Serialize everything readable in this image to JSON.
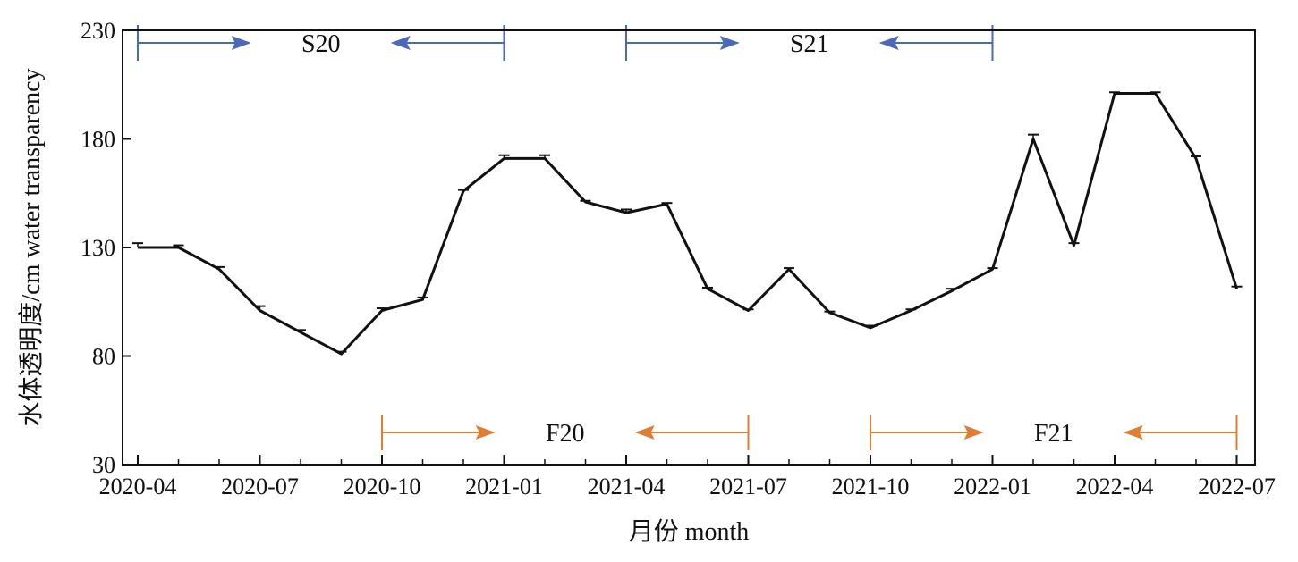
{
  "chart_data": {
    "type": "line",
    "title": "",
    "xlabel": "月份 month",
    "ylabel": "水体透明度/cm water transparency",
    "ylim": [
      30,
      230
    ],
    "yticks": [
      "30",
      "80",
      "130",
      "180",
      "230"
    ],
    "xticks": [
      "2020-04",
      "2020-07",
      "2020-10",
      "2021-01",
      "2021-04",
      "2021-07",
      "2021-10",
      "2022-01",
      "2022-04",
      "2022-07"
    ],
    "grid": false,
    "series": [
      {
        "x": [
          "2020-04",
          "2020-05",
          "2020-06",
          "2020-07",
          "2020-08",
          "2020-09",
          "2020-10",
          "2020-11",
          "2020-12",
          "2021-01",
          "2021-02",
          "2021-03",
          "2021-04",
          "2021-05",
          "2021-06",
          "2021-07",
          "2021-08",
          "2021-09",
          "2021-10",
          "2021-11",
          "2021-12",
          "2022-01",
          "2022-02",
          "2022-03",
          "2022-04",
          "2022-05",
          "2022-06",
          "2022-07"
        ],
        "values": [
          130,
          130,
          120,
          101,
          91,
          81,
          101,
          106,
          156,
          171,
          171,
          151,
          146,
          150,
          111,
          101,
          120,
          100,
          93,
          101,
          110,
          120,
          180,
          131,
          201,
          201,
          171,
          111
        ],
        "error": [
          2,
          1,
          1,
          2,
          1,
          1,
          1,
          1,
          0.5,
          1.5,
          1.5,
          0.5,
          1.5,
          0.5,
          0.5,
          0.5,
          0.5,
          0.5,
          1,
          0.5,
          1,
          0.5,
          2,
          1,
          0.5,
          0.5,
          1,
          1
        ]
      }
    ],
    "periods": [
      {
        "label": "S20",
        "start": "2020-04",
        "end": "2021-01",
        "color": "#4a6ab8",
        "row": "top"
      },
      {
        "label": "S21",
        "start": "2021-04",
        "end": "2022-01",
        "color": "#4a6ab8",
        "row": "top"
      },
      {
        "label": "F20",
        "start": "2020-10",
        "end": "2021-07",
        "color": "#e07d35",
        "row": "bottom"
      },
      {
        "label": "F21",
        "start": "2021-10",
        "end": "2022-07",
        "color": "#e07d35",
        "row": "bottom"
      }
    ]
  }
}
